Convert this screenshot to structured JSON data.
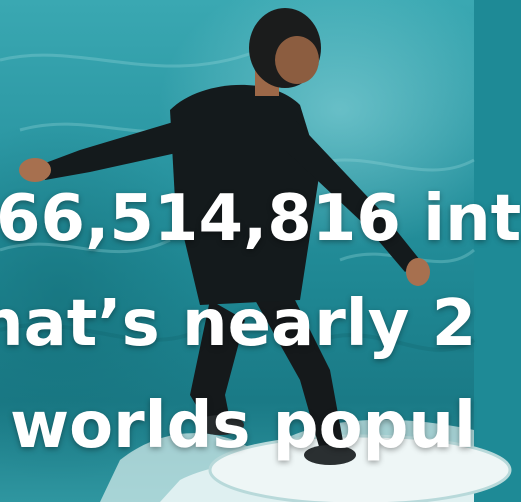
{
  "image": {
    "alt_subject": "surfer riding inside a turquoise wave",
    "colors": {
      "water": "#2b97a3",
      "water_dark": "#1a7a86",
      "foam": "#e8f4f3",
      "wetsuit": "#141a1c",
      "skin": "#b07a5a",
      "text": "#ffffff"
    }
  },
  "caption": {
    "line1": "66,514,816 int",
    "line2": "hat’s nearly 2",
    "line3": "worlds popul"
  }
}
